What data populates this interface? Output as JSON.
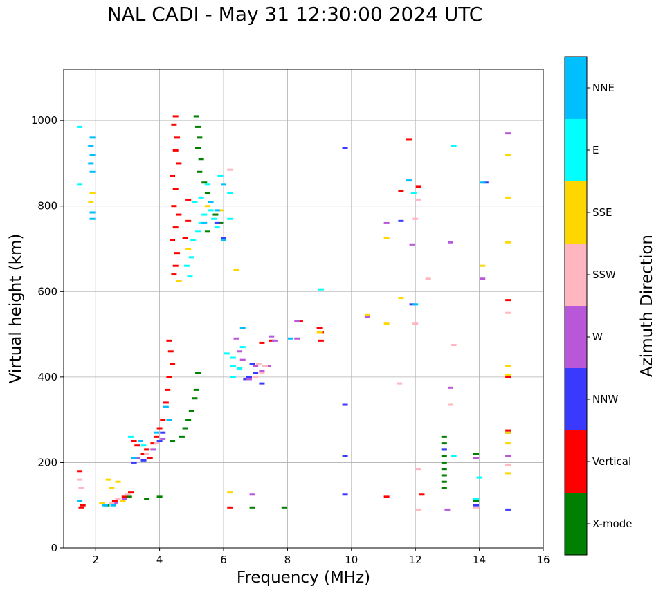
{
  "chart_data": {
    "type": "scatter",
    "title": "NAL CADI - May 31 12:30:00 2024 UTC",
    "xlabel": "Frequency (MHz)",
    "ylabel": "Virtual height (km)",
    "xlim": [
      1,
      16
    ],
    "ylim": [
      0,
      1120
    ],
    "xticks": [
      2,
      4,
      6,
      8,
      10,
      12,
      14,
      16
    ],
    "yticks": [
      0,
      200,
      400,
      600,
      800,
      1000
    ],
    "grid": true,
    "colorbar": {
      "label": "Azimuth Direction",
      "categories": [
        "X-mode",
        "Vertical",
        "NNW",
        "W",
        "SSW",
        "SSE",
        "E",
        "NNE"
      ],
      "colors": [
        "#008000",
        "#ff0000",
        "#3a3aff",
        "#b857d8",
        "#ffb6c1",
        "#ffd700",
        "#00ffff",
        "#00bfff"
      ]
    },
    "series": [
      {
        "name": "X-mode",
        "points": [
          [
            5.15,
            1010
          ],
          [
            5.2,
            985
          ],
          [
            5.25,
            960
          ],
          [
            5.2,
            935
          ],
          [
            5.3,
            910
          ],
          [
            5.25,
            880
          ],
          [
            5.4,
            855
          ],
          [
            5.5,
            830
          ],
          [
            5.6,
            810
          ],
          [
            5.75,
            780
          ],
          [
            5.5,
            740
          ],
          [
            5.9,
            760
          ],
          [
            4.4,
            250
          ],
          [
            4.7,
            260
          ],
          [
            4.8,
            280
          ],
          [
            4.9,
            300
          ],
          [
            5.0,
            320
          ],
          [
            5.1,
            350
          ],
          [
            5.15,
            370
          ],
          [
            5.2,
            410
          ],
          [
            12.9,
            260
          ],
          [
            12.9,
            245
          ],
          [
            12.9,
            230
          ],
          [
            12.9,
            215
          ],
          [
            12.9,
            200
          ],
          [
            12.9,
            185
          ],
          [
            12.9,
            170
          ],
          [
            12.9,
            155
          ],
          [
            12.9,
            140
          ],
          [
            13.9,
            220
          ],
          [
            13.9,
            110
          ],
          [
            6.9,
            95
          ],
          [
            7.9,
            95
          ],
          [
            4.0,
            120
          ],
          [
            3.6,
            115
          ],
          [
            3.05,
            120
          ],
          [
            2.35,
            100
          ]
        ]
      },
      {
        "name": "Vertical",
        "points": [
          [
            4.5,
            1010
          ],
          [
            4.45,
            990
          ],
          [
            4.55,
            960
          ],
          [
            4.5,
            930
          ],
          [
            4.6,
            900
          ],
          [
            4.4,
            870
          ],
          [
            4.5,
            840
          ],
          [
            4.45,
            800
          ],
          [
            4.6,
            780
          ],
          [
            4.5,
            750
          ],
          [
            4.4,
            720
          ],
          [
            4.55,
            690
          ],
          [
            4.5,
            660
          ],
          [
            4.45,
            640
          ],
          [
            4.6,
            625
          ],
          [
            4.9,
            815
          ],
          [
            4.9,
            765
          ],
          [
            4.8,
            725
          ],
          [
            4.3,
            485
          ],
          [
            4.35,
            460
          ],
          [
            4.4,
            430
          ],
          [
            4.3,
            400
          ],
          [
            4.25,
            370
          ],
          [
            4.2,
            340
          ],
          [
            4.1,
            300
          ],
          [
            4.0,
            280
          ],
          [
            3.9,
            260
          ],
          [
            3.8,
            245
          ],
          [
            3.6,
            230
          ],
          [
            3.5,
            220
          ],
          [
            3.3,
            240
          ],
          [
            3.2,
            250
          ],
          [
            3.7,
            210
          ],
          [
            3.1,
            130
          ],
          [
            2.9,
            120
          ],
          [
            2.6,
            110
          ],
          [
            2.2,
            105
          ],
          [
            1.6,
            100
          ],
          [
            1.5,
            180
          ],
          [
            1.55,
            95
          ],
          [
            6.2,
            95
          ],
          [
            7.5,
            485
          ],
          [
            7.2,
            480
          ],
          [
            8.4,
            530
          ],
          [
            9.0,
            515
          ],
          [
            9.05,
            505
          ],
          [
            9.05,
            485
          ],
          [
            11.8,
            955
          ],
          [
            11.55,
            835
          ],
          [
            12.1,
            845
          ],
          [
            12.2,
            125
          ],
          [
            11.1,
            120
          ],
          [
            14.9,
            580
          ],
          [
            14.9,
            400
          ],
          [
            14.9,
            275
          ]
        ]
      },
      {
        "name": "NNW",
        "points": [
          [
            9.8,
            935
          ],
          [
            9.8,
            335
          ],
          [
            9.8,
            215
          ],
          [
            9.8,
            125
          ],
          [
            11.55,
            765
          ],
          [
            11.9,
            570
          ],
          [
            14.2,
            855
          ],
          [
            14.9,
            270
          ],
          [
            12.9,
            230
          ],
          [
            13.9,
            100
          ],
          [
            14.9,
            90
          ],
          [
            6.7,
            395
          ],
          [
            6.8,
            400
          ],
          [
            6.9,
            430
          ],
          [
            7.0,
            410
          ],
          [
            7.2,
            385
          ],
          [
            3.5,
            205
          ],
          [
            3.2,
            200
          ],
          [
            4.0,
            250
          ],
          [
            4.1,
            270
          ],
          [
            5.8,
            760
          ],
          [
            6.0,
            725
          ]
        ]
      },
      {
        "name": "W",
        "points": [
          [
            14.9,
            970
          ],
          [
            11.1,
            760
          ],
          [
            11.9,
            710
          ],
          [
            13.1,
            715
          ],
          [
            14.1,
            630
          ],
          [
            10.5,
            540
          ],
          [
            8.3,
            530
          ],
          [
            8.3,
            490
          ],
          [
            7.5,
            495
          ],
          [
            7.6,
            485
          ],
          [
            7.0,
            425
          ],
          [
            6.5,
            460
          ],
          [
            6.6,
            440
          ],
          [
            6.8,
            395
          ],
          [
            7.2,
            415
          ],
          [
            7.4,
            425
          ],
          [
            6.4,
            490
          ],
          [
            6.9,
            125
          ],
          [
            13.0,
            90
          ],
          [
            13.1,
            375
          ],
          [
            14.9,
            215
          ],
          [
            13.9,
            210
          ],
          [
            2.6,
            105
          ],
          [
            3.3,
            210
          ],
          [
            3.8,
            230
          ],
          [
            4.1,
            255
          ],
          [
            2.9,
            115
          ]
        ]
      },
      {
        "name": "SSW",
        "points": [
          [
            12.4,
            630
          ],
          [
            12.0,
            770
          ],
          [
            12.1,
            815
          ],
          [
            12.0,
            525
          ],
          [
            13.2,
            475
          ],
          [
            13.1,
            335
          ],
          [
            14.9,
            550
          ],
          [
            11.5,
            385
          ],
          [
            12.1,
            185
          ],
          [
            12.1,
            90
          ],
          [
            14.9,
            195
          ],
          [
            13.9,
            95
          ],
          [
            6.2,
            885
          ],
          [
            7.1,
            430
          ],
          [
            7.3,
            425
          ],
          [
            7.0,
            400
          ],
          [
            7.2,
            410
          ],
          [
            1.5,
            160
          ],
          [
            1.55,
            140
          ],
          [
            2.5,
            105
          ],
          [
            2.7,
            115
          ],
          [
            3.0,
            125
          ],
          [
            3.6,
            220
          ],
          [
            3.9,
            245
          ]
        ]
      },
      {
        "name": "SSE",
        "points": [
          [
            14.9,
            920
          ],
          [
            14.9,
            820
          ],
          [
            14.9,
            715
          ],
          [
            14.1,
            660
          ],
          [
            11.1,
            725
          ],
          [
            11.55,
            585
          ],
          [
            11.1,
            525
          ],
          [
            14.9,
            425
          ],
          [
            14.9,
            405
          ],
          [
            14.9,
            270
          ],
          [
            14.9,
            245
          ],
          [
            14.9,
            175
          ],
          [
            6.4,
            650
          ],
          [
            6.2,
            130
          ],
          [
            10.5,
            545
          ],
          [
            9.0,
            505
          ],
          [
            1.9,
            830
          ],
          [
            1.85,
            810
          ],
          [
            2.4,
            160
          ],
          [
            2.5,
            140
          ],
          [
            2.7,
            155
          ],
          [
            2.2,
            105
          ],
          [
            2.85,
            110
          ],
          [
            4.6,
            625
          ],
          [
            4.9,
            700
          ],
          [
            5.5,
            800
          ],
          [
            5.9,
            790
          ]
        ]
      },
      {
        "name": "E",
        "points": [
          [
            13.2,
            940
          ],
          [
            9.05,
            605
          ],
          [
            11.95,
            830
          ],
          [
            13.2,
            215
          ],
          [
            14.0,
            165
          ],
          [
            13.9,
            115
          ],
          [
            6.3,
            400
          ],
          [
            6.3,
            425
          ],
          [
            6.5,
            420
          ],
          [
            6.1,
            455
          ],
          [
            6.3,
            445
          ],
          [
            6.6,
            470
          ],
          [
            5.0,
            680
          ],
          [
            5.05,
            720
          ],
          [
            5.2,
            740
          ],
          [
            5.3,
            760
          ],
          [
            5.4,
            780
          ],
          [
            5.6,
            790
          ],
          [
            5.7,
            770
          ],
          [
            5.8,
            750
          ],
          [
            5.1,
            810
          ],
          [
            5.3,
            820
          ],
          [
            5.5,
            850
          ],
          [
            5.9,
            870
          ],
          [
            6.2,
            830
          ],
          [
            6.2,
            770
          ],
          [
            4.95,
            635
          ],
          [
            4.85,
            660
          ],
          [
            3.1,
            260
          ],
          [
            3.5,
            240
          ],
          [
            1.5,
            985
          ],
          [
            1.5,
            850
          ]
        ]
      },
      {
        "name": "NNE",
        "points": [
          [
            1.9,
            960
          ],
          [
            1.85,
            940
          ],
          [
            1.9,
            920
          ],
          [
            1.85,
            900
          ],
          [
            1.9,
            880
          ],
          [
            1.9,
            785
          ],
          [
            1.9,
            770
          ],
          [
            14.1,
            855
          ],
          [
            12.0,
            570
          ],
          [
            11.8,
            860
          ],
          [
            6.0,
            720
          ],
          [
            5.4,
            760
          ],
          [
            5.6,
            810
          ],
          [
            5.8,
            790
          ],
          [
            6.0,
            850
          ],
          [
            4.3,
            300
          ],
          [
            4.2,
            330
          ],
          [
            3.9,
            270
          ],
          [
            3.4,
            250
          ],
          [
            3.2,
            210
          ],
          [
            1.5,
            110
          ],
          [
            2.3,
            100
          ],
          [
            2.55,
            100
          ],
          [
            8.1,
            490
          ],
          [
            6.6,
            515
          ]
        ]
      }
    ]
  }
}
